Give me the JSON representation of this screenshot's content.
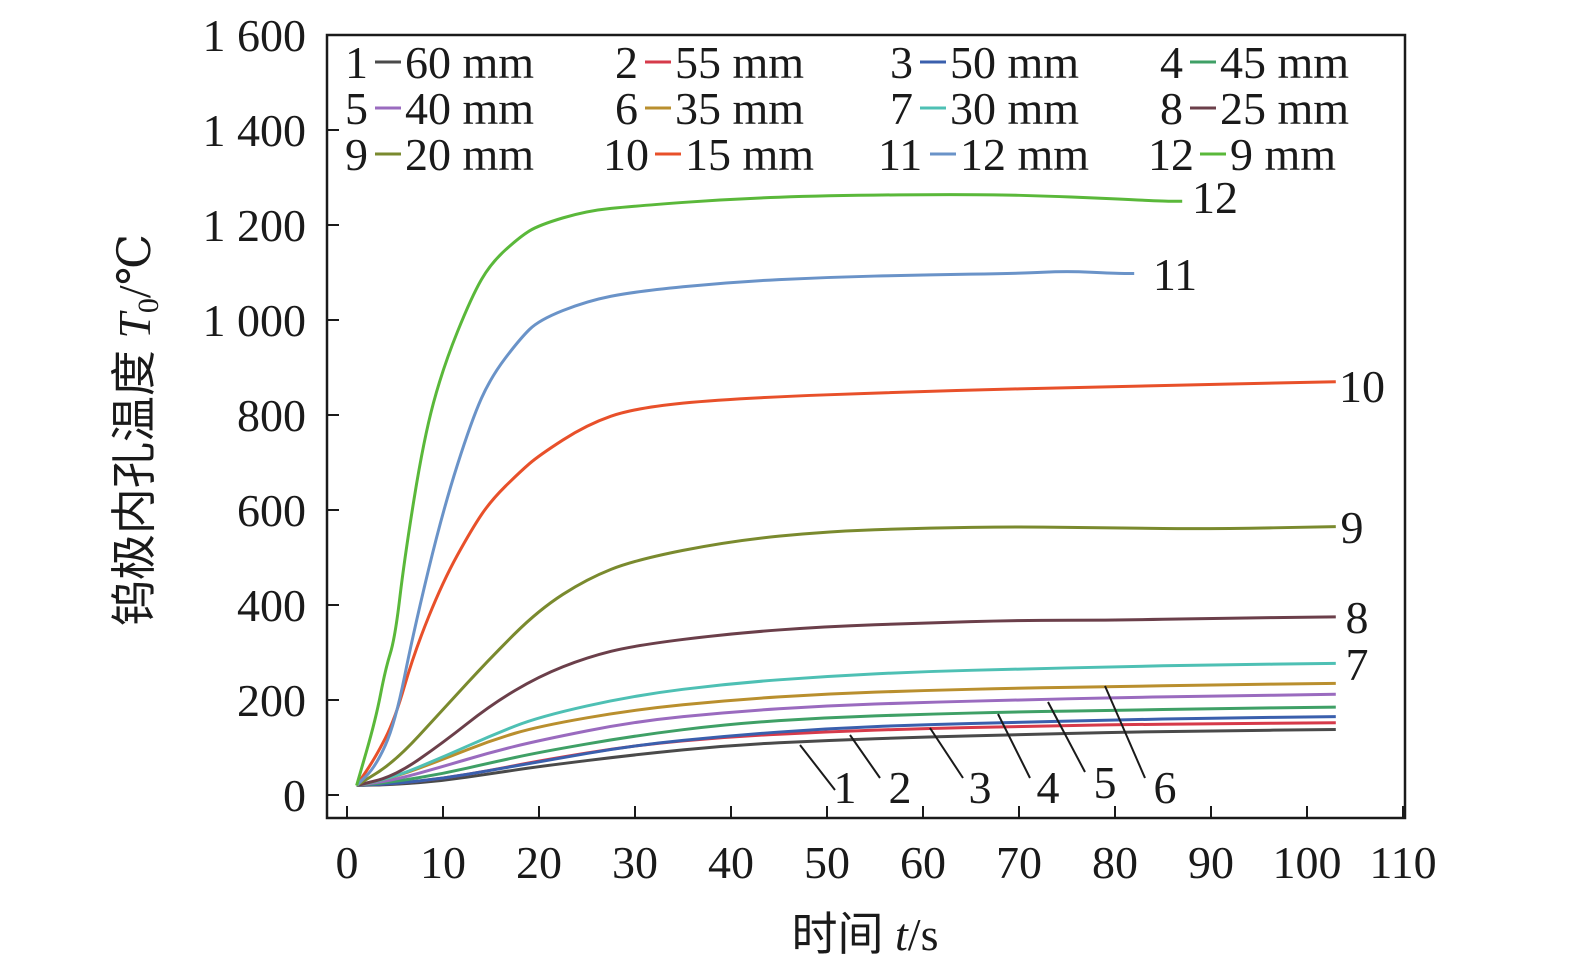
{
  "chart_data": {
    "type": "line",
    "xlabel": {
      "prefix": "时间 ",
      "var": "t",
      "unit": "/s"
    },
    "ylabel": {
      "prefix": "钨极内孔温度 ",
      "var": "T",
      "sub": "0",
      "unit": "/℃"
    },
    "xlim": [
      -2,
      110
    ],
    "ylim": [
      -48,
      1600
    ],
    "xticks": [
      0,
      10,
      20,
      30,
      40,
      50,
      60,
      70,
      80,
      90,
      100,
      110
    ],
    "xtick_labels": [
      "0",
      "10",
      "20",
      "30",
      "40",
      "50",
      "60",
      "70",
      "80",
      "90",
      "100",
      "110"
    ],
    "yticks": [
      0,
      200,
      400,
      600,
      800,
      1000,
      1200,
      1400,
      1600
    ],
    "ytick_labels": [
      "0",
      "200",
      "400",
      "600",
      "800",
      "1 000",
      "1 200",
      "1 400",
      "1 600"
    ],
    "grid": false,
    "legend_position": "top",
    "series": [
      {
        "id": "1",
        "name": "60 mm",
        "color": "#4a4a4a",
        "x": [
          1,
          5,
          10,
          15,
          20,
          30,
          40,
          50,
          60,
          70,
          80,
          90,
          103
        ],
        "y": [
          20,
          22,
          30,
          45,
          60,
          85,
          105,
          115,
          122,
          127,
          132,
          135,
          138
        ]
      },
      {
        "id": "2",
        "name": "55 mm",
        "color": "#d63a4a",
        "x": [
          1,
          5,
          10,
          15,
          20,
          30,
          40,
          50,
          60,
          70,
          80,
          90,
          103
        ],
        "y": [
          20,
          24,
          35,
          52,
          72,
          105,
          123,
          133,
          140,
          144,
          148,
          150,
          152
        ]
      },
      {
        "id": "3",
        "name": "50 mm",
        "color": "#3a5fad",
        "x": [
          1,
          5,
          10,
          15,
          20,
          30,
          40,
          50,
          60,
          70,
          80,
          90,
          103
        ],
        "y": [
          20,
          24,
          35,
          52,
          70,
          105,
          125,
          140,
          148,
          153,
          158,
          162,
          165
        ]
      },
      {
        "id": "4",
        "name": "45 mm",
        "color": "#3fa066",
        "x": [
          1,
          5,
          10,
          15,
          20,
          30,
          40,
          50,
          60,
          70,
          80,
          90,
          103
        ],
        "y": [
          20,
          28,
          45,
          68,
          90,
          125,
          150,
          163,
          170,
          175,
          178,
          182,
          185
        ]
      },
      {
        "id": "5",
        "name": "40 mm",
        "color": "#9a6bbf",
        "x": [
          1,
          5,
          10,
          15,
          20,
          30,
          40,
          50,
          60,
          70,
          80,
          90,
          103
        ],
        "y": [
          20,
          32,
          60,
          90,
          115,
          155,
          175,
          188,
          195,
          200,
          205,
          208,
          212
        ]
      },
      {
        "id": "6",
        "name": "35 mm",
        "color": "#b98f2e",
        "x": [
          1,
          5,
          10,
          15,
          20,
          30,
          40,
          50,
          60,
          70,
          80,
          90,
          103
        ],
        "y": [
          20,
          38,
          75,
          115,
          145,
          180,
          200,
          213,
          220,
          225,
          228,
          232,
          235
        ]
      },
      {
        "id": "7",
        "name": "30 mm",
        "color": "#4ec0b4",
        "x": [
          1,
          5,
          10,
          15,
          20,
          30,
          40,
          50,
          60,
          70,
          80,
          90,
          103
        ],
        "y": [
          20,
          38,
          80,
          125,
          165,
          210,
          235,
          250,
          260,
          265,
          270,
          274,
          277
        ]
      },
      {
        "id": "8",
        "name": "25 mm",
        "color": "#6b3f4a",
        "x": [
          1,
          5,
          10,
          15,
          20,
          25,
          30,
          40,
          50,
          60,
          70,
          80,
          90,
          103
        ],
        "y": [
          20,
          40,
          110,
          190,
          250,
          290,
          315,
          340,
          355,
          362,
          368,
          368,
          372,
          375
        ]
      },
      {
        "id": "9",
        "name": "20 mm",
        "color": "#7a8a2e",
        "x": [
          1,
          5,
          10,
          15,
          20,
          25,
          30,
          40,
          50,
          60,
          70,
          80,
          90,
          103
        ],
        "y": [
          20,
          70,
          180,
          290,
          390,
          455,
          495,
          535,
          555,
          562,
          565,
          562,
          560,
          565
        ]
      },
      {
        "id": "10",
        "name": "15 mm",
        "color": "#e8502a",
        "x": [
          1,
          3,
          5,
          7,
          10,
          13,
          15,
          18,
          20,
          25,
          30,
          40,
          60,
          80,
          103
        ],
        "y": [
          20,
          80,
          160,
          300,
          450,
          560,
          620,
          680,
          715,
          780,
          815,
          835,
          850,
          860,
          870
        ]
      },
      {
        "id": "11",
        "name": "12 mm",
        "color": "#6a93c8",
        "x": [
          1,
          3,
          5,
          7,
          10,
          13,
          15,
          18,
          20,
          25,
          30,
          40,
          50,
          60,
          70,
          75,
          80,
          82
        ],
        "y": [
          20,
          60,
          150,
          350,
          600,
          790,
          880,
          960,
          1000,
          1040,
          1060,
          1080,
          1090,
          1095,
          1098,
          1103,
          1098,
          1098
        ]
      },
      {
        "id": "12",
        "name": "9 mm",
        "color": "#5ab83a",
        "x": [
          1,
          3,
          4,
          5,
          6,
          8,
          10,
          13,
          15,
          18,
          20,
          25,
          30,
          40,
          50,
          65,
          75,
          85,
          87
        ],
        "y": [
          20,
          160,
          265,
          330,
          500,
          750,
          900,
          1050,
          1120,
          1175,
          1200,
          1230,
          1240,
          1255,
          1262,
          1265,
          1260,
          1250,
          1250
        ]
      }
    ]
  }
}
